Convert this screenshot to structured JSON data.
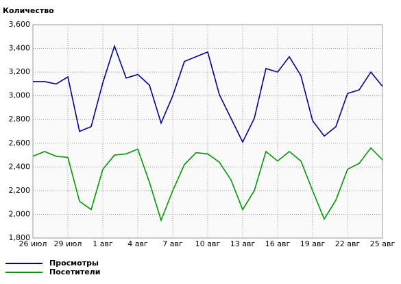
{
  "chart_data": {
    "type": "line",
    "y_axis_title": "Количество",
    "categories": [
      "26 июл",
      null,
      null,
      "29 июл",
      null,
      null,
      "1 авг",
      null,
      null,
      "4 авг",
      null,
      null,
      "7 авг",
      null,
      null,
      "10 авг",
      null,
      null,
      "13 авг",
      null,
      null,
      "16 авг",
      null,
      null,
      "19 авг",
      null,
      null,
      "22 авг",
      null,
      null,
      "25 авг"
    ],
    "series": [
      {
        "name": "Просмотры",
        "color": "#000099",
        "values": [
          3120,
          3120,
          3100,
          3160,
          2700,
          2740,
          3110,
          3420,
          3150,
          3180,
          3090,
          2770,
          3000,
          3290,
          3330,
          3370,
          3010,
          2810,
          2610,
          2810,
          3230,
          3200,
          3330,
          3170,
          2790,
          2660,
          2740,
          3020,
          3050,
          3200,
          3080
        ]
      },
      {
        "name": "Посетители",
        "color": "#009900",
        "values": [
          2490,
          2530,
          2490,
          2480,
          2110,
          2040,
          2380,
          2500,
          2510,
          2550,
          2270,
          1950,
          2200,
          2420,
          2520,
          2510,
          2440,
          2290,
          2040,
          2200,
          2530,
          2450,
          2530,
          2450,
          2200,
          1960,
          2120,
          2380,
          2430,
          2560,
          2460
        ]
      }
    ],
    "ylim": [
      1800,
      3600
    ],
    "yticks": [
      {
        "value": 1800,
        "label": "1,800"
      },
      {
        "value": 2000,
        "label": "2,000"
      },
      {
        "value": 2200,
        "label": "2,200"
      },
      {
        "value": 2400,
        "label": "2,400"
      },
      {
        "value": 2600,
        "label": "2,600"
      },
      {
        "value": 2800,
        "label": "2,800"
      },
      {
        "value": 3000,
        "label": "3,000"
      },
      {
        "value": 3200,
        "label": "3,200"
      },
      {
        "value": 3400,
        "label": "3,400"
      },
      {
        "value": 3600,
        "label": "3,600"
      }
    ],
    "grid": true,
    "legend": "bottom-left"
  }
}
